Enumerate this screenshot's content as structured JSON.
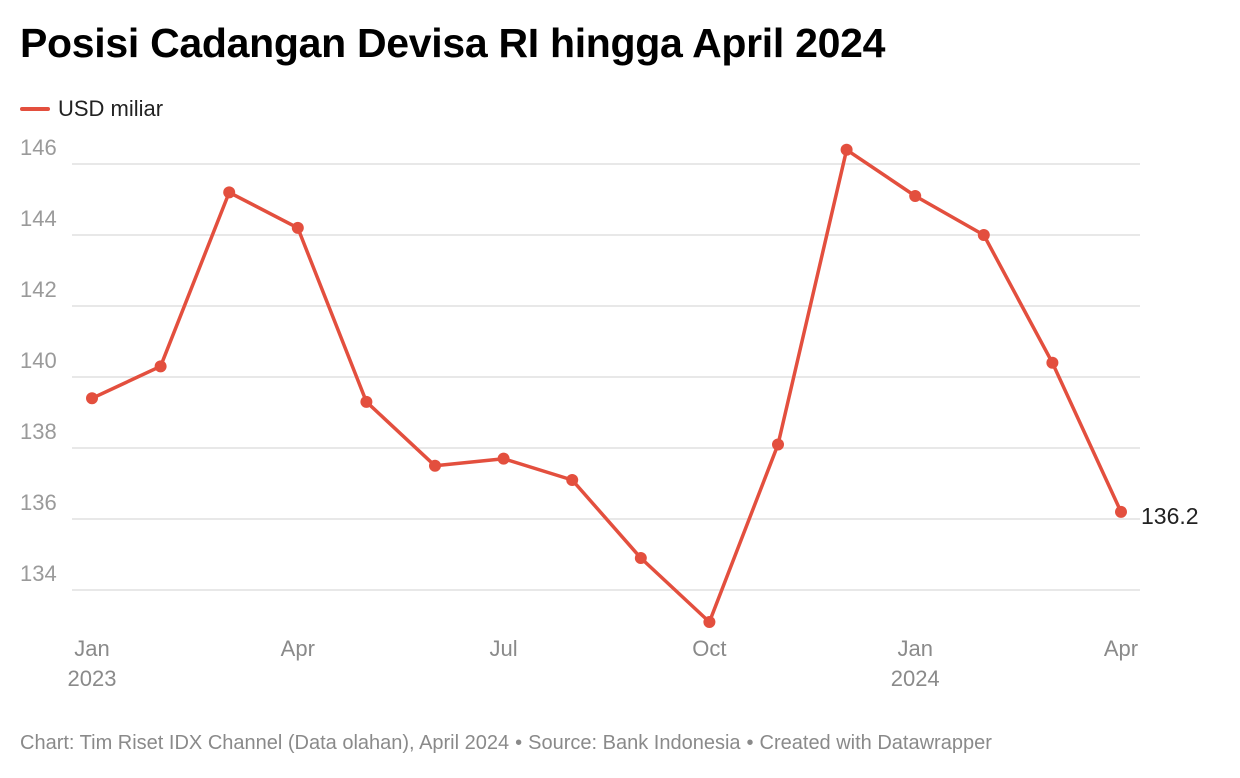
{
  "title": "Posisi Cadangan Devisa RI hingga April 2024",
  "legend": {
    "label": "USD miliar"
  },
  "colors": {
    "series": "#e34f3e",
    "grid": "#e0e0e0",
    "tick_text": "#9a9a9a",
    "x_tick_text": "#8a8a8a",
    "end_label": "#222222"
  },
  "footer": {
    "chart_credit": "Chart: Tim Riset IDX Channel (Data olahan), April 2024",
    "separator": "•",
    "source": "Source: Bank Indonesia",
    "created": "Created with Datawrapper"
  },
  "chart_data": {
    "type": "line",
    "title": "Posisi Cadangan Devisa RI hingga April 2024",
    "xlabel": "",
    "ylabel": "",
    "x": [
      "2023-01",
      "2023-02",
      "2023-03",
      "2023-04",
      "2023-05",
      "2023-06",
      "2023-07",
      "2023-08",
      "2023-09",
      "2023-10",
      "2023-11",
      "2023-12",
      "2024-01",
      "2024-02",
      "2024-03",
      "2024-04"
    ],
    "series": [
      {
        "name": "USD miliar",
        "values": [
          139.4,
          140.3,
          145.2,
          144.2,
          139.3,
          137.5,
          137.7,
          137.1,
          134.9,
          133.1,
          138.1,
          146.4,
          145.1,
          144.0,
          140.4,
          136.2
        ]
      }
    ],
    "y_ticks": [
      "146",
      "144",
      "142",
      "140",
      "138",
      "136",
      "134"
    ],
    "x_ticks": [
      {
        "month": "Jan",
        "year": "2023"
      },
      {
        "month": "Apr",
        "year": ""
      },
      {
        "month": "Jul",
        "year": ""
      },
      {
        "month": "Oct",
        "year": ""
      },
      {
        "month": "Jan",
        "year": "2024"
      },
      {
        "month": "Apr",
        "year": ""
      }
    ],
    "end_label": "136.2",
    "ylim": [
      133,
      146.5
    ],
    "grid": true,
    "legend_position": "top-left"
  }
}
